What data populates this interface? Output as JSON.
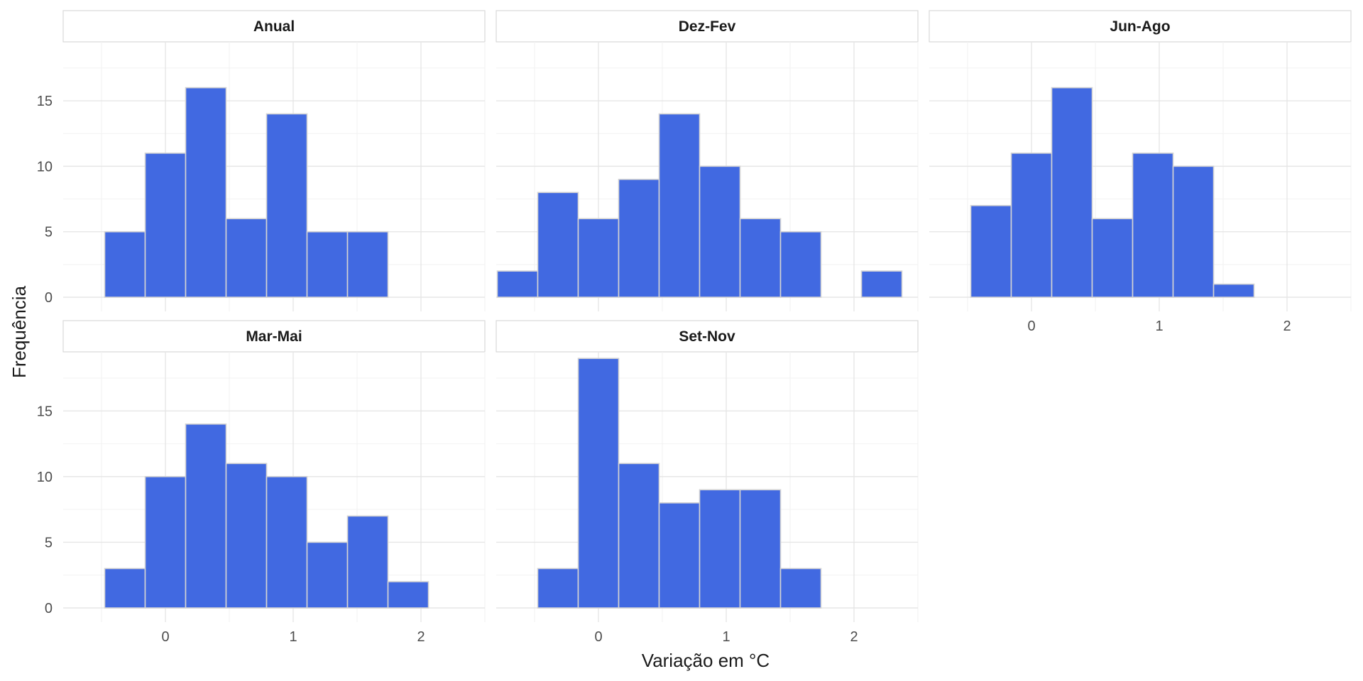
{
  "chart_data": {
    "type": "bar",
    "subtype": "histogram-facets",
    "xlabel": "Variação em °C",
    "ylabel": "Frequência",
    "xlim": [
      -0.8,
      2.5
    ],
    "ylim": [
      0,
      19.5
    ],
    "x_ticks": [
      0,
      1,
      2
    ],
    "y_ticks": [
      0,
      5,
      10,
      15
    ],
    "bin_width": 0.3167,
    "bin_start": -0.7917,
    "n_bins": 10,
    "bar_color": "#4169E1",
    "bar_outline": "#D3D3D3",
    "grid": true,
    "panels": [
      {
        "name": "Anual",
        "values": [
          0,
          5,
          11,
          16,
          6,
          14,
          5,
          5,
          0,
          0
        ]
      },
      {
        "name": "Dez-Fev",
        "values": [
          2,
          8,
          6,
          9,
          14,
          10,
          6,
          5,
          0,
          2
        ]
      },
      {
        "name": "Jun-Ago",
        "values": [
          0,
          7,
          11,
          16,
          6,
          11,
          10,
          1,
          0,
          0
        ]
      },
      {
        "name": "Mar-Mai",
        "values": [
          0,
          3,
          10,
          14,
          11,
          10,
          5,
          7,
          2,
          0
        ]
      },
      {
        "name": "Set-Nov",
        "values": [
          0,
          3,
          19,
          11,
          8,
          9,
          9,
          3,
          0,
          0
        ]
      }
    ]
  }
}
